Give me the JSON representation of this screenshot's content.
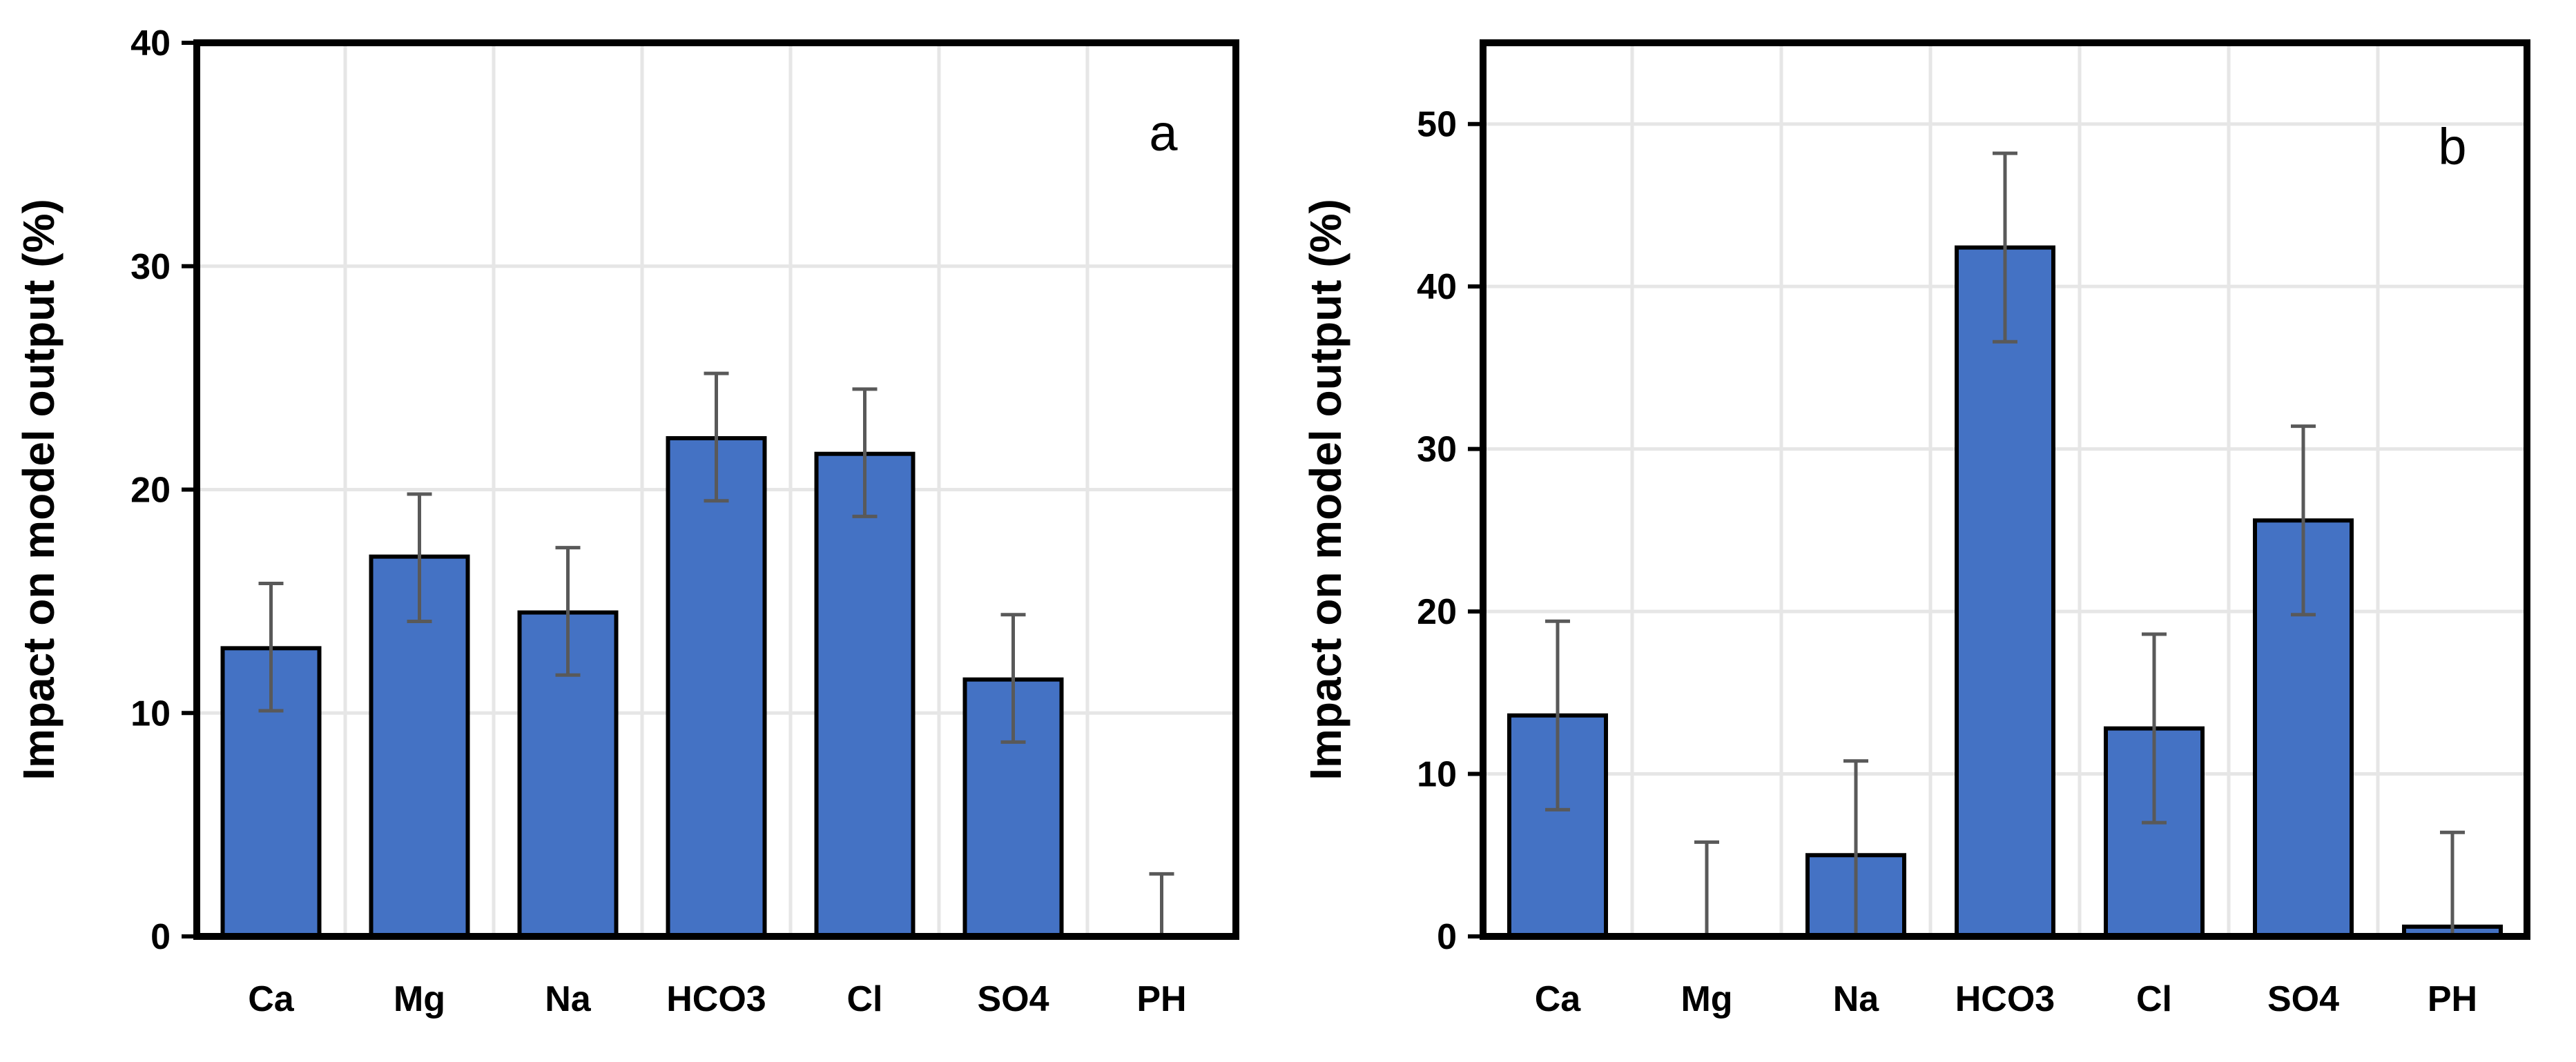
{
  "chart_data": [
    {
      "type": "bar",
      "panel_label": "a",
      "ylabel": "Impact on model output (%)",
      "xlabel": "",
      "categories": [
        "Ca",
        "Mg",
        "Na",
        "HCO3",
        "Cl",
        "SO4",
        "PH"
      ],
      "values": [
        12.9,
        17.0,
        14.5,
        22.3,
        21.6,
        11.5,
        0.0
      ],
      "error_low": [
        10.1,
        14.1,
        11.7,
        19.5,
        18.8,
        8.7,
        0.0
      ],
      "error_high": [
        15.8,
        19.8,
        17.4,
        25.2,
        24.5,
        14.4,
        2.8
      ],
      "ylim": [
        0,
        40
      ],
      "yticks": [
        0,
        10,
        20,
        30,
        40
      ],
      "grid": true,
      "bar_color": "#4472C4"
    },
    {
      "type": "bar",
      "panel_label": "b",
      "ylabel": "Impact on model output (%)",
      "xlabel": "",
      "categories": [
        "Ca",
        "Mg",
        "Na",
        "HCO3",
        "Cl",
        "SO4",
        "PH"
      ],
      "values": [
        13.6,
        0.0,
        5.0,
        42.4,
        12.8,
        25.6,
        0.6
      ],
      "error_low": [
        7.8,
        0.0,
        0.0,
        36.6,
        7.0,
        19.8,
        0.0
      ],
      "error_high": [
        19.4,
        5.8,
        10.8,
        48.2,
        18.6,
        31.4,
        6.4
      ],
      "ylim": [
        0,
        55
      ],
      "yticks": [
        0,
        10,
        20,
        30,
        40,
        50
      ],
      "grid": true,
      "bar_color": "#4472C4"
    }
  ]
}
